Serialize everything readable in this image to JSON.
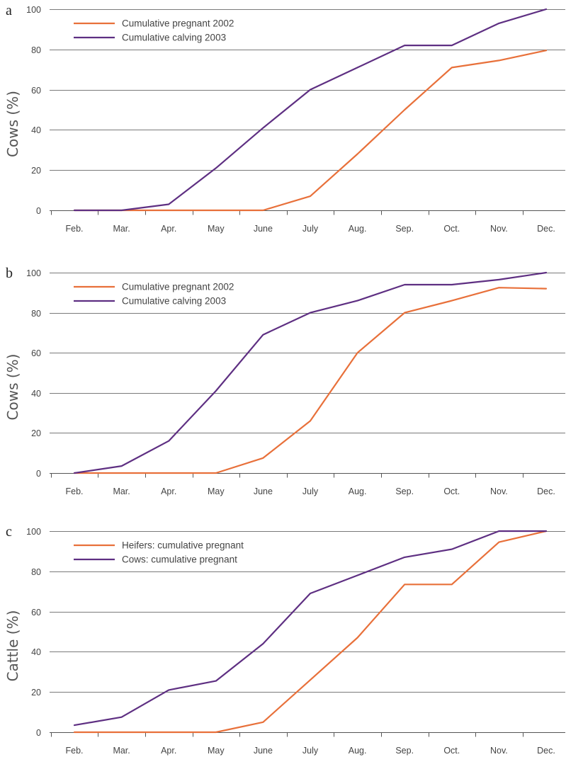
{
  "colors": {
    "orange": "#e8703a",
    "purple": "#5e2f82"
  },
  "chart_data": [
    {
      "type": "line",
      "panel_label": "a",
      "ylabel": "Cows (%)",
      "ylim": [
        0,
        100
      ],
      "yticks": [
        0,
        20,
        40,
        60,
        80,
        100
      ],
      "grid": "horizontal",
      "legend_position": "top-left",
      "categories": [
        "Feb.",
        "Mar.",
        "Apr.",
        "May",
        "June",
        "July",
        "Aug.",
        "Sep.",
        "Oct.",
        "Nov.",
        "Dec."
      ],
      "series": [
        {
          "name": "Cumulative pregnant 2002",
          "color": "#e8703a",
          "values": [
            0,
            0,
            0,
            0,
            0,
            7,
            28,
            50,
            71,
            74.5,
            79.5
          ]
        },
        {
          "name": "Cumulative calving 2003",
          "color": "#5e2f82",
          "values": [
            0,
            0,
            3,
            21,
            41,
            60,
            71,
            82,
            82,
            93,
            100
          ]
        }
      ]
    },
    {
      "type": "line",
      "panel_label": "b",
      "ylabel": "Cows (%)",
      "ylim": [
        0,
        100
      ],
      "yticks": [
        0,
        20,
        40,
        60,
        80,
        100
      ],
      "grid": "horizontal",
      "legend_position": "top-left",
      "categories": [
        "Feb.",
        "Mar.",
        "Apr.",
        "May",
        "June",
        "July",
        "Aug.",
        "Sep.",
        "Oct.",
        "Nov.",
        "Dec."
      ],
      "series": [
        {
          "name": "Cumulative pregnant 2002",
          "color": "#e8703a",
          "values": [
            0,
            0,
            0,
            0,
            7.5,
            26,
            60,
            80,
            86,
            92.5,
            92
          ]
        },
        {
          "name": "Cumulative calving 2003",
          "color": "#5e2f82",
          "values": [
            0,
            3.5,
            16,
            41,
            69,
            80,
            86,
            94,
            94,
            96.5,
            100
          ]
        }
      ]
    },
    {
      "type": "line",
      "panel_label": "c",
      "ylabel": "Cattle (%)",
      "ylim": [
        0,
        100
      ],
      "yticks": [
        0,
        20,
        40,
        60,
        80,
        100
      ],
      "grid": "horizontal",
      "legend_position": "top-left",
      "categories": [
        "Feb.",
        "Mar.",
        "Apr.",
        "May",
        "June",
        "July",
        "Aug.",
        "Sep.",
        "Oct.",
        "Nov.",
        "Dec."
      ],
      "series": [
        {
          "name": "Heifers: cumulative pregnant",
          "color": "#e8703a",
          "values": [
            0,
            0,
            0,
            0,
            5,
            26,
            47,
            73.5,
            73.5,
            94.5,
            100
          ]
        },
        {
          "name": "Cows: cumulative pregnant",
          "color": "#5e2f82",
          "values": [
            3.5,
            7.5,
            21,
            25.5,
            44,
            69,
            78,
            87,
            91,
            100,
            100
          ]
        }
      ]
    }
  ]
}
